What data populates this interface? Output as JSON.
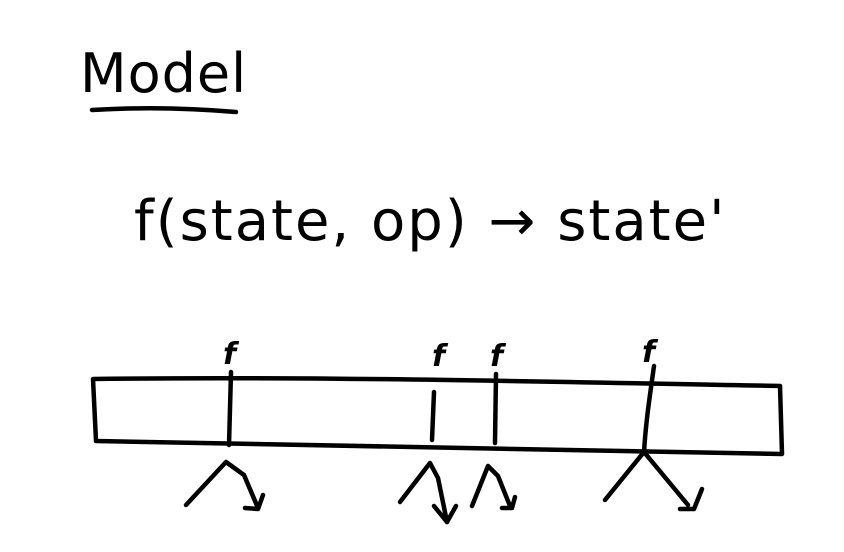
{
  "title": "Model",
  "formula": "f(state, op) → state'",
  "timeline": {
    "markers": [
      {
        "label": "f"
      },
      {
        "label": "f"
      },
      {
        "label": "f"
      },
      {
        "label": "f"
      }
    ]
  },
  "colors": {
    "ink": "#000000",
    "background": "#ffffff"
  }
}
